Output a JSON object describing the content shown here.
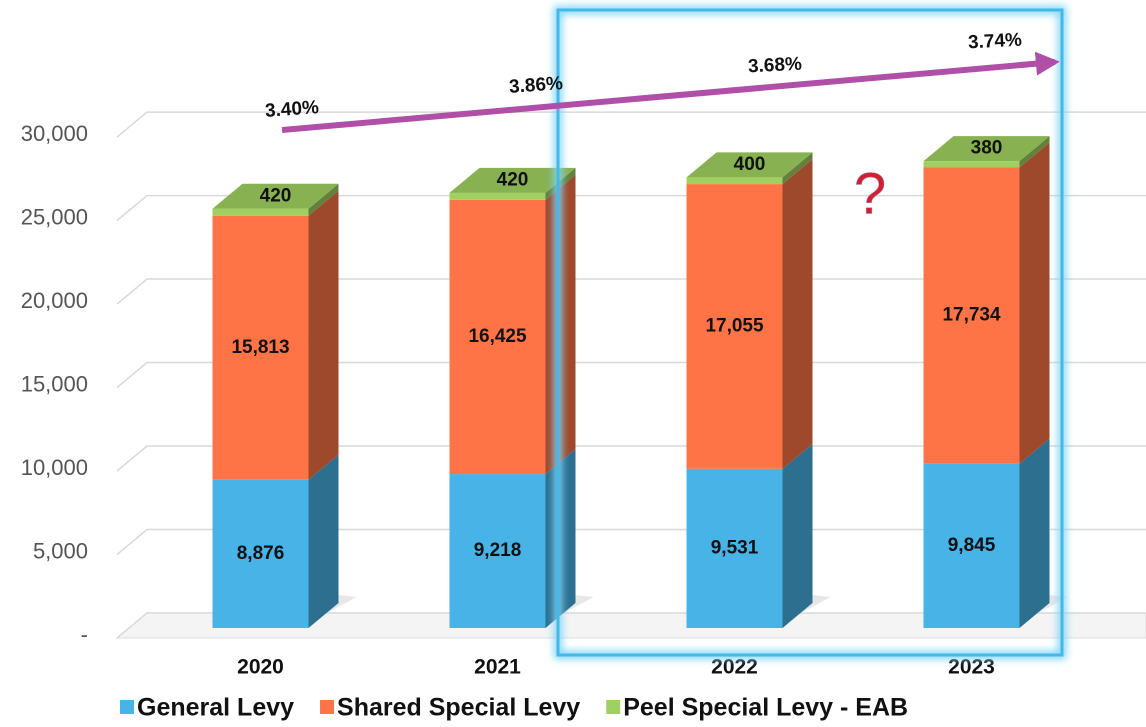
{
  "chart_data": {
    "type": "stacked_bar_3d",
    "categories": [
      "2020",
      "2021",
      "2022",
      "2023"
    ],
    "series": [
      {
        "name": "General Levy",
        "color": "#47b3e6",
        "values": [
          8876,
          9218,
          9531,
          9845
        ],
        "value_labels": [
          "8,876",
          "9,218",
          "9,531",
          "9,845"
        ]
      },
      {
        "name": "Shared Special Levy",
        "color": "#ff7447",
        "values": [
          15813,
          16425,
          17055,
          17734
        ],
        "value_labels": [
          "15,813",
          "16,425",
          "17,055",
          "17,734"
        ]
      },
      {
        "name": "Peel Special Levy - EAB",
        "color": "#a0d060",
        "values": [
          420,
          420,
          400,
          380
        ]
      }
    ],
    "annotations": [
      "3.40%",
      "3.86%",
      "3.68%",
      "3.74%",
      "?"
    ],
    "ylim": [
      0,
      33000
    ],
    "yticks": [
      {
        "value": 0,
        "label": "-"
      },
      {
        "value": 5000,
        "label": "5,000"
      },
      {
        "value": 10000,
        "label": "10,000"
      },
      {
        "value": 15000,
        "label": "15,000"
      },
      {
        "value": 20000,
        "label": "20,000"
      },
      {
        "value": 25000,
        "label": "25,000"
      },
      {
        "value": 30000,
        "label": "30,000"
      }
    ],
    "grid": true,
    "legend": "bottom"
  }
}
